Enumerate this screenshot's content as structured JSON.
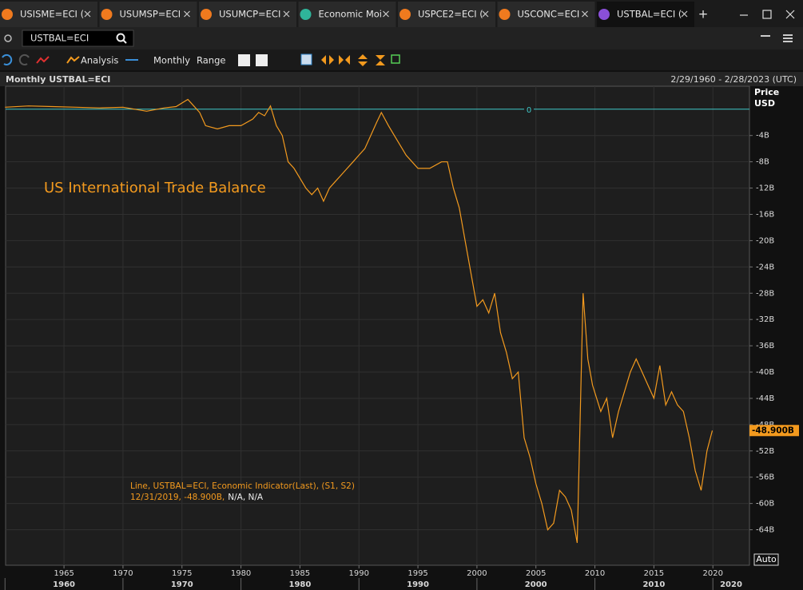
{
  "tabs": [
    "USISME=ECI (",
    "USUMSP=ECI",
    "USUMCP=ECI",
    "Economic Moi",
    "USPCE2=ECI (",
    "USCONC=ECI",
    "USTBAL=ECI ("
  ],
  "search": "USTBAL=ECI",
  "toolbar": [
    "Analysis",
    "Monthly",
    "Range"
  ],
  "header": {
    "title": "Monthly USTBAL=ECI",
    "range": "2/29/1960 - 2/28/2023 (UTC)"
  },
  "axis_header": [
    "Price",
    "USD"
  ],
  "auto_button": "Auto",
  "chart_data": {
    "type": "line",
    "annotation": "US International Trade Balance",
    "legend": [
      "Line, USTBAL=ECI, Economic Indicator(Last), (S1, S2)",
      "12/31/2019, -48.900B,",
      "N/A, N/A"
    ],
    "color": "#f39a1e",
    "x": [
      1960,
      1962,
      1964,
      1966,
      1968,
      1970,
      1972,
      1973.5,
      1974.5,
      1975.5,
      1976,
      1976.5,
      1977,
      1978,
      1979,
      1980,
      1981,
      1981.5,
      1982,
      1982.5,
      1983,
      1983.5,
      1984,
      1984.5,
      1985,
      1985.5,
      1986,
      1986.5,
      1987,
      1987.5,
      1988,
      1988.5,
      1989,
      1989.5,
      1990,
      1990.5,
      1991,
      1991.5,
      1991.9,
      1992.5,
      1993,
      1994,
      1995,
      1996,
      1997,
      1997.5,
      1998,
      1998.5,
      1999,
      1999.5,
      2000,
      2000.5,
      2001,
      2001.5,
      2002,
      2002.5,
      2003,
      2003.5,
      2004,
      2004.5,
      2005,
      2005.5,
      2006,
      2006.5,
      2007,
      2007.5,
      2008,
      2008.5,
      2009,
      2009.4,
      2009.8,
      2010.5,
      2011,
      2011.5,
      2012,
      2012.5,
      2013,
      2013.5,
      2014,
      2014.5,
      2015,
      2015.5,
      2016,
      2016.5,
      2017,
      2017.5,
      2018,
      2018.5,
      2019,
      2019.5,
      2019.95
    ],
    "values": [
      0.3,
      0.5,
      0.4,
      0.3,
      0.2,
      0.3,
      -0.3,
      0.2,
      0.4,
      1.5,
      0.5,
      -0.5,
      -2.5,
      -3,
      -2.5,
      -2.5,
      -1.5,
      -0.5,
      -1,
      0.5,
      -2.5,
      -4,
      -8,
      -9,
      -10.5,
      -12,
      -13,
      -12,
      -14,
      -12,
      -11,
      -10,
      -9,
      -8,
      -7,
      -6,
      -4,
      -2,
      -0.5,
      -2.5,
      -4,
      -7,
      -9,
      -9,
      -8,
      -8,
      -12,
      -15,
      -20,
      -25,
      -30,
      -29,
      -31,
      -28,
      -34,
      -37,
      -41,
      -40,
      -50,
      -53,
      -57,
      -60,
      -64,
      -63,
      -58,
      -59,
      -61,
      -66,
      -28,
      -38,
      -42,
      -46,
      -44,
      -50,
      -46,
      -43,
      -40,
      -38,
      -40,
      -42,
      -44,
      -39,
      -45,
      -43,
      -45,
      -46,
      -50,
      -55,
      -58,
      -52,
      -48.9
    ],
    "xlim": [
      1960.05,
      2023.1
    ],
    "ylim": [
      -69.4,
      3.5
    ],
    "xticks": [
      1965,
      1970,
      1975,
      1980,
      1985,
      1990,
      1995,
      2000,
      2005,
      2010,
      2015,
      2020
    ],
    "decade_labels": [
      1960,
      1970,
      1980,
      1990,
      2000,
      2010,
      2020
    ],
    "yticks": [
      {
        "value": -4,
        "label": "-4B"
      },
      {
        "value": -8,
        "label": "-8B"
      },
      {
        "value": -12,
        "label": "-12B"
      },
      {
        "value": -16,
        "label": "-16B"
      },
      {
        "value": -20,
        "label": "-20B"
      },
      {
        "value": -24,
        "label": "-24B"
      },
      {
        "value": -28,
        "label": "-28B"
      },
      {
        "value": -32,
        "label": "-32B"
      },
      {
        "value": -36,
        "label": "-36B"
      },
      {
        "value": -40,
        "label": "-40B"
      },
      {
        "value": -44,
        "label": "-44B"
      },
      {
        "value": -48,
        "label": "-48B"
      },
      {
        "value": -52,
        "label": "-52B"
      },
      {
        "value": -56,
        "label": "-56B"
      },
      {
        "value": -60,
        "label": "-60B"
      },
      {
        "value": -64,
        "label": "-64B"
      }
    ],
    "zero_line": 0,
    "zero_line_color": "#3fc8c8",
    "last_value": {
      "value": -48.9,
      "label": "-48.900B"
    },
    "grid": true
  }
}
